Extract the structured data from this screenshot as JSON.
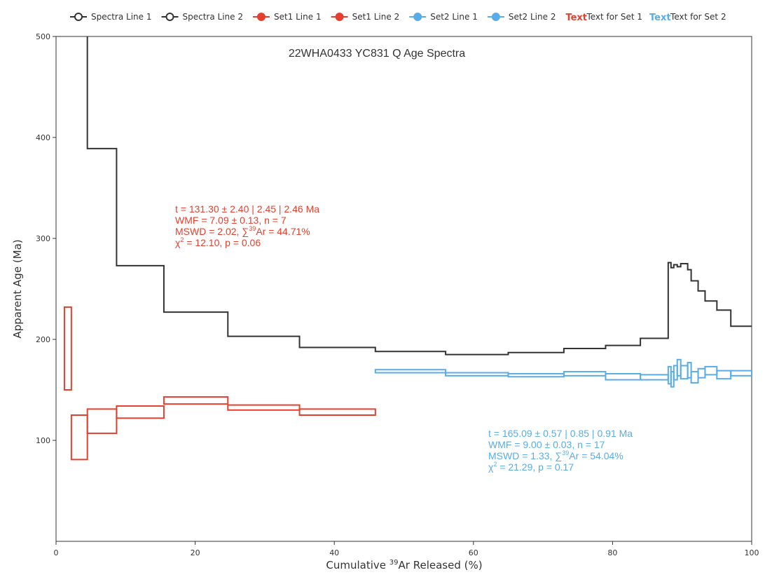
{
  "chart_data": {
    "type": "line",
    "title": "22WHA0433 YC831 Q Age Spectra",
    "xlabel": {
      "before": "Cumulative ",
      "sup": "39",
      "after": "Ar Released (%)"
    },
    "ylabel": "Apparent Age (Ma)",
    "xlim": [
      0,
      100
    ],
    "ylim": [
      0,
      500
    ],
    "xticks": [
      "0",
      "20",
      "40",
      "60",
      "80",
      "100"
    ],
    "yticks": [
      "100",
      "200",
      "300",
      "400",
      "500"
    ],
    "grid": false,
    "legend_position": "top",
    "legend": [
      {
        "label": "Spectra Line 1",
        "color": "#333333",
        "marker": "hollow"
      },
      {
        "label": "Spectra Line 2",
        "color": "#333333",
        "marker": "hollow"
      },
      {
        "label": "Set1 Line 1",
        "color": "#e5402f",
        "marker": "filled"
      },
      {
        "label": "Set1 Line 2",
        "color": "#e5402f",
        "marker": "filled"
      },
      {
        "label": "Set2 Line 1",
        "color": "#5aace6",
        "marker": "filled"
      },
      {
        "label": "Set2 Line 2",
        "color": "#5aace6",
        "marker": "filled"
      },
      {
        "label": "Text for Set 1",
        "color": "#e5402f",
        "marker": "text",
        "symbol": "Text"
      },
      {
        "label": "Text for Set 2",
        "color": "#5aace6",
        "marker": "text",
        "symbol": "Text"
      }
    ],
    "series": [
      {
        "name": "Spectra Line 1",
        "color": "#333333",
        "steps": [
          {
            "x0": 4.5,
            "x1": 8.7,
            "y": 389
          },
          {
            "x0": 8.7,
            "x1": 15.5,
            "y": 273
          },
          {
            "x0": 15.5,
            "x1": 24.7,
            "y": 227
          },
          {
            "x0": 24.7,
            "x1": 35.0,
            "y": 203
          },
          {
            "x0": 35.0,
            "x1": 45.9,
            "y": 192
          },
          {
            "x0": 45.9,
            "x1": 56.0,
            "y": 188
          },
          {
            "x0": 56.0,
            "x1": 65.0,
            "y": 185
          },
          {
            "x0": 65.0,
            "x1": 73.0,
            "y": 187
          },
          {
            "x0": 73.0,
            "x1": 79.0,
            "y": 191
          },
          {
            "x0": 79.0,
            "x1": 84.0,
            "y": 194
          },
          {
            "x0": 84.0,
            "x1": 88.0,
            "y": 201
          },
          {
            "x0": 88.0,
            "x1": 88.4,
            "y": 276
          },
          {
            "x0": 88.4,
            "x1": 88.8,
            "y": 271
          },
          {
            "x0": 88.8,
            "x1": 89.3,
            "y": 274
          },
          {
            "x0": 89.3,
            "x1": 89.8,
            "y": 272
          },
          {
            "x0": 89.8,
            "x1": 90.8,
            "y": 275
          },
          {
            "x0": 90.8,
            "x1": 91.3,
            "y": 269
          },
          {
            "x0": 91.3,
            "x1": 92.3,
            "y": 258
          },
          {
            "x0": 92.3,
            "x1": 93.3,
            "y": 248
          },
          {
            "x0": 93.3,
            "x1": 95.0,
            "y": 238
          },
          {
            "x0": 95.0,
            "x1": 97.0,
            "y": 229
          },
          {
            "x0": 97.0,
            "x1": 100.0,
            "y": 213
          }
        ],
        "lead": {
          "x": 4.5,
          "y": 500
        }
      },
      {
        "name": "Set1",
        "color": "#e5402f",
        "boxes": [
          {
            "x0": 1.2,
            "x1": 2.2,
            "ylo": 150,
            "yhi": 232
          },
          {
            "x0": 2.2,
            "x1": 4.5,
            "ylo": 81,
            "yhi": 125
          },
          {
            "x0": 4.5,
            "x1": 8.7,
            "ylo": 107,
            "yhi": 131
          },
          {
            "x0": 8.7,
            "x1": 15.5,
            "ylo": 122,
            "yhi": 134
          },
          {
            "x0": 15.5,
            "x1": 24.7,
            "ylo": 136,
            "yhi": 143
          },
          {
            "x0": 24.7,
            "x1": 35.0,
            "ylo": 130,
            "yhi": 135
          },
          {
            "x0": 35.0,
            "x1": 45.9,
            "ylo": 125,
            "yhi": 131
          }
        ]
      },
      {
        "name": "Set2",
        "color": "#5aace6",
        "boxes": [
          {
            "x0": 45.9,
            "x1": 56.0,
            "ylo": 167,
            "yhi": 170
          },
          {
            "x0": 56.0,
            "x1": 65.0,
            "ylo": 164,
            "yhi": 167
          },
          {
            "x0": 65.0,
            "x1": 73.0,
            "ylo": 163,
            "yhi": 166
          },
          {
            "x0": 73.0,
            "x1": 79.0,
            "ylo": 164,
            "yhi": 168
          },
          {
            "x0": 79.0,
            "x1": 84.0,
            "ylo": 160,
            "yhi": 166
          },
          {
            "x0": 84.0,
            "x1": 88.0,
            "ylo": 160,
            "yhi": 165
          },
          {
            "x0": 88.0,
            "x1": 88.4,
            "ylo": 156,
            "yhi": 173
          },
          {
            "x0": 88.4,
            "x1": 88.8,
            "ylo": 153,
            "yhi": 168
          },
          {
            "x0": 88.8,
            "x1": 89.3,
            "ylo": 160,
            "yhi": 174
          },
          {
            "x0": 89.3,
            "x1": 89.8,
            "ylo": 164,
            "yhi": 180
          },
          {
            "x0": 89.8,
            "x1": 90.8,
            "ylo": 161,
            "yhi": 174
          },
          {
            "x0": 90.8,
            "x1": 91.3,
            "ylo": 162,
            "yhi": 177
          },
          {
            "x0": 91.3,
            "x1": 92.3,
            "ylo": 157,
            "yhi": 168
          },
          {
            "x0": 92.3,
            "x1": 93.3,
            "ylo": 162,
            "yhi": 171
          },
          {
            "x0": 93.3,
            "x1": 95.0,
            "ylo": 165,
            "yhi": 173
          },
          {
            "x0": 95.0,
            "x1": 97.0,
            "ylo": 161,
            "yhi": 169
          },
          {
            "x0": 97.0,
            "x1": 100.0,
            "ylo": 164,
            "yhi": 169
          }
        ]
      }
    ],
    "annotations": [
      {
        "series": "Set1",
        "color": "#e5402f",
        "lines": [
          {
            "text": "t = 131.30 ± 2.40 | 2.45 | 2.46 Ma"
          },
          {
            "text": "WMF = 7.09 ± 0.13, n = 7"
          },
          {
            "pre": "MSWD = 2.02, ∑",
            "sup": "39",
            "post": "Ar = 44.71%"
          },
          {
            "pre": "χ",
            "sup": "2",
            "post": " = 12.10, p = 0.06"
          }
        ]
      },
      {
        "series": "Set2",
        "color": "#5aace6",
        "lines": [
          {
            "text": "t = 165.09 ± 0.57 | 0.85 | 0.91 Ma"
          },
          {
            "text": "WMF = 9.00 ± 0.03, n = 17"
          },
          {
            "pre": "MSWD = 1.33, ∑",
            "sup": "39",
            "post": "Ar = 54.04%"
          },
          {
            "pre": "χ",
            "sup": "2",
            "post": " = 21.29, p = 0.17"
          }
        ]
      }
    ]
  }
}
